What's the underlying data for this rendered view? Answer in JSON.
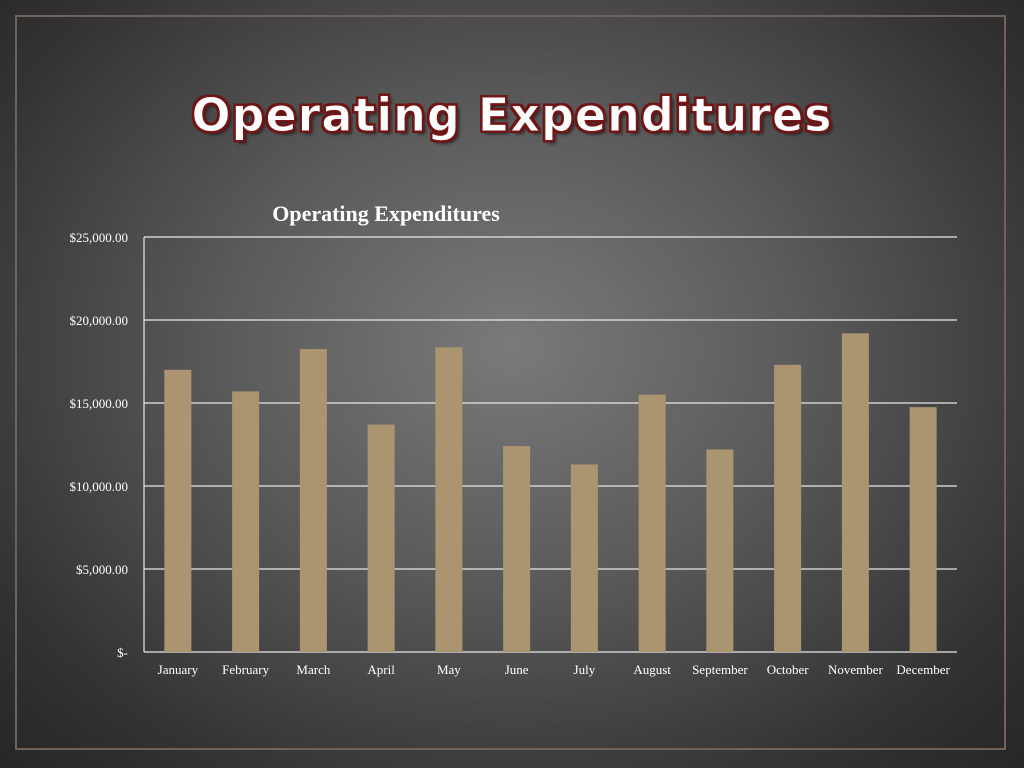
{
  "slide": {
    "title": "Operating Expenditures"
  },
  "colors": {
    "bar": "#ab9570",
    "gridline": "#e8e8e8",
    "text": "#ffffff",
    "title_outline": "#6b1616",
    "frame": "#6e6259"
  },
  "chart_data": {
    "type": "bar",
    "title": "Operating Expenditures",
    "xlabel": "",
    "ylabel": "",
    "categories": [
      "January",
      "February",
      "March",
      "April",
      "May",
      "June",
      "July",
      "August",
      "September",
      "October",
      "November",
      "December"
    ],
    "values": [
      17000,
      15700,
      18250,
      13700,
      18350,
      12400,
      11300,
      15500,
      12200,
      17300,
      19200,
      14750
    ],
    "ylim": [
      0,
      25000
    ],
    "yticks": [
      0,
      5000,
      10000,
      15000,
      20000,
      25000
    ],
    "ytick_labels": [
      "$-",
      "$5,000.00",
      "$10,000.00",
      "$15,000.00",
      "$20,000.00",
      "$25,000.00"
    ],
    "grid": true,
    "legend": "none"
  }
}
